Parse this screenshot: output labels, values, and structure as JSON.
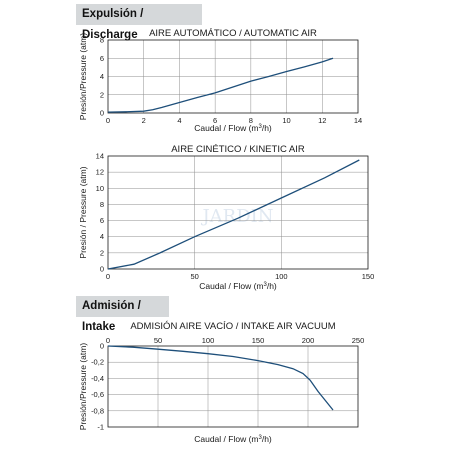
{
  "sections": {
    "discharge": "Expulsión / Discharge",
    "intake": "Admisión / Intake"
  },
  "watermark": "JARDIN",
  "colors": {
    "curve": "#1e4f7a",
    "header_bg": "#d5d8da",
    "grid": "#8f8f8f"
  },
  "chart_data": [
    {
      "type": "line",
      "title": "AIRE AUTOMÁTICO / AUTOMATIC AIR",
      "xlabel": "Caudal / Flow (m³/h)",
      "ylabel": "Presión/Pressure (atm)",
      "xlim": [
        0,
        14
      ],
      "ylim": [
        0,
        8
      ],
      "xticks": [
        0,
        2,
        4,
        6,
        8,
        10,
        12,
        14
      ],
      "yticks": [
        0,
        2,
        4,
        6,
        8
      ],
      "grid": true,
      "series": [
        {
          "x": [
            0,
            1,
            2,
            2.5,
            3,
            4,
            5,
            6,
            7,
            8,
            9,
            10,
            11,
            12,
            12.6
          ],
          "y": [
            0.1,
            0.13,
            0.2,
            0.35,
            0.6,
            1.15,
            1.7,
            2.2,
            2.85,
            3.5,
            4.0,
            4.55,
            5.05,
            5.6,
            6.0
          ]
        }
      ]
    },
    {
      "type": "line",
      "title": "AIRE CINÉTICO / KINETIC AIR",
      "xlabel": "Caudal / Flow (m³/h)",
      "ylabel": "Presión / Pressure (atm)",
      "xlim": [
        0,
        150
      ],
      "ylim": [
        0,
        14
      ],
      "xticks": [
        0,
        50,
        100,
        150
      ],
      "yticks": [
        0,
        2,
        4,
        6,
        8,
        10,
        12,
        14
      ],
      "grid": true,
      "series": [
        {
          "x": [
            0,
            15,
            30,
            50,
            75,
            100,
            125,
            145
          ],
          "y": [
            0,
            0.6,
            2.0,
            4.0,
            6.3,
            8.8,
            11.3,
            13.5
          ]
        }
      ]
    },
    {
      "type": "line",
      "title": "ADMISIÓN AIRE VACÍO / INTAKE AIR VACUUM",
      "xlabel": "Caudal / Flow (m³/h)",
      "ylabel": "Presión/Pressure (atm)",
      "xlim": [
        0,
        250
      ],
      "ylim": [
        -1,
        0
      ],
      "xticks": [
        0,
        50,
        100,
        150,
        200,
        250
      ],
      "yticks": [
        0,
        -0.2,
        -0.4,
        -0.6,
        -0.8,
        -1
      ],
      "yticklabels": [
        "0",
        "-0,2",
        "-0,4",
        "-0,6",
        "-0,8",
        "-1"
      ],
      "grid": true,
      "series": [
        {
          "x": [
            0,
            25,
            50,
            75,
            100,
            125,
            150,
            170,
            185,
            195,
            202,
            210,
            225
          ],
          "y": [
            0,
            -0.015,
            -0.04,
            -0.065,
            -0.095,
            -0.13,
            -0.18,
            -0.23,
            -0.28,
            -0.34,
            -0.42,
            -0.56,
            -0.79
          ]
        }
      ]
    }
  ]
}
